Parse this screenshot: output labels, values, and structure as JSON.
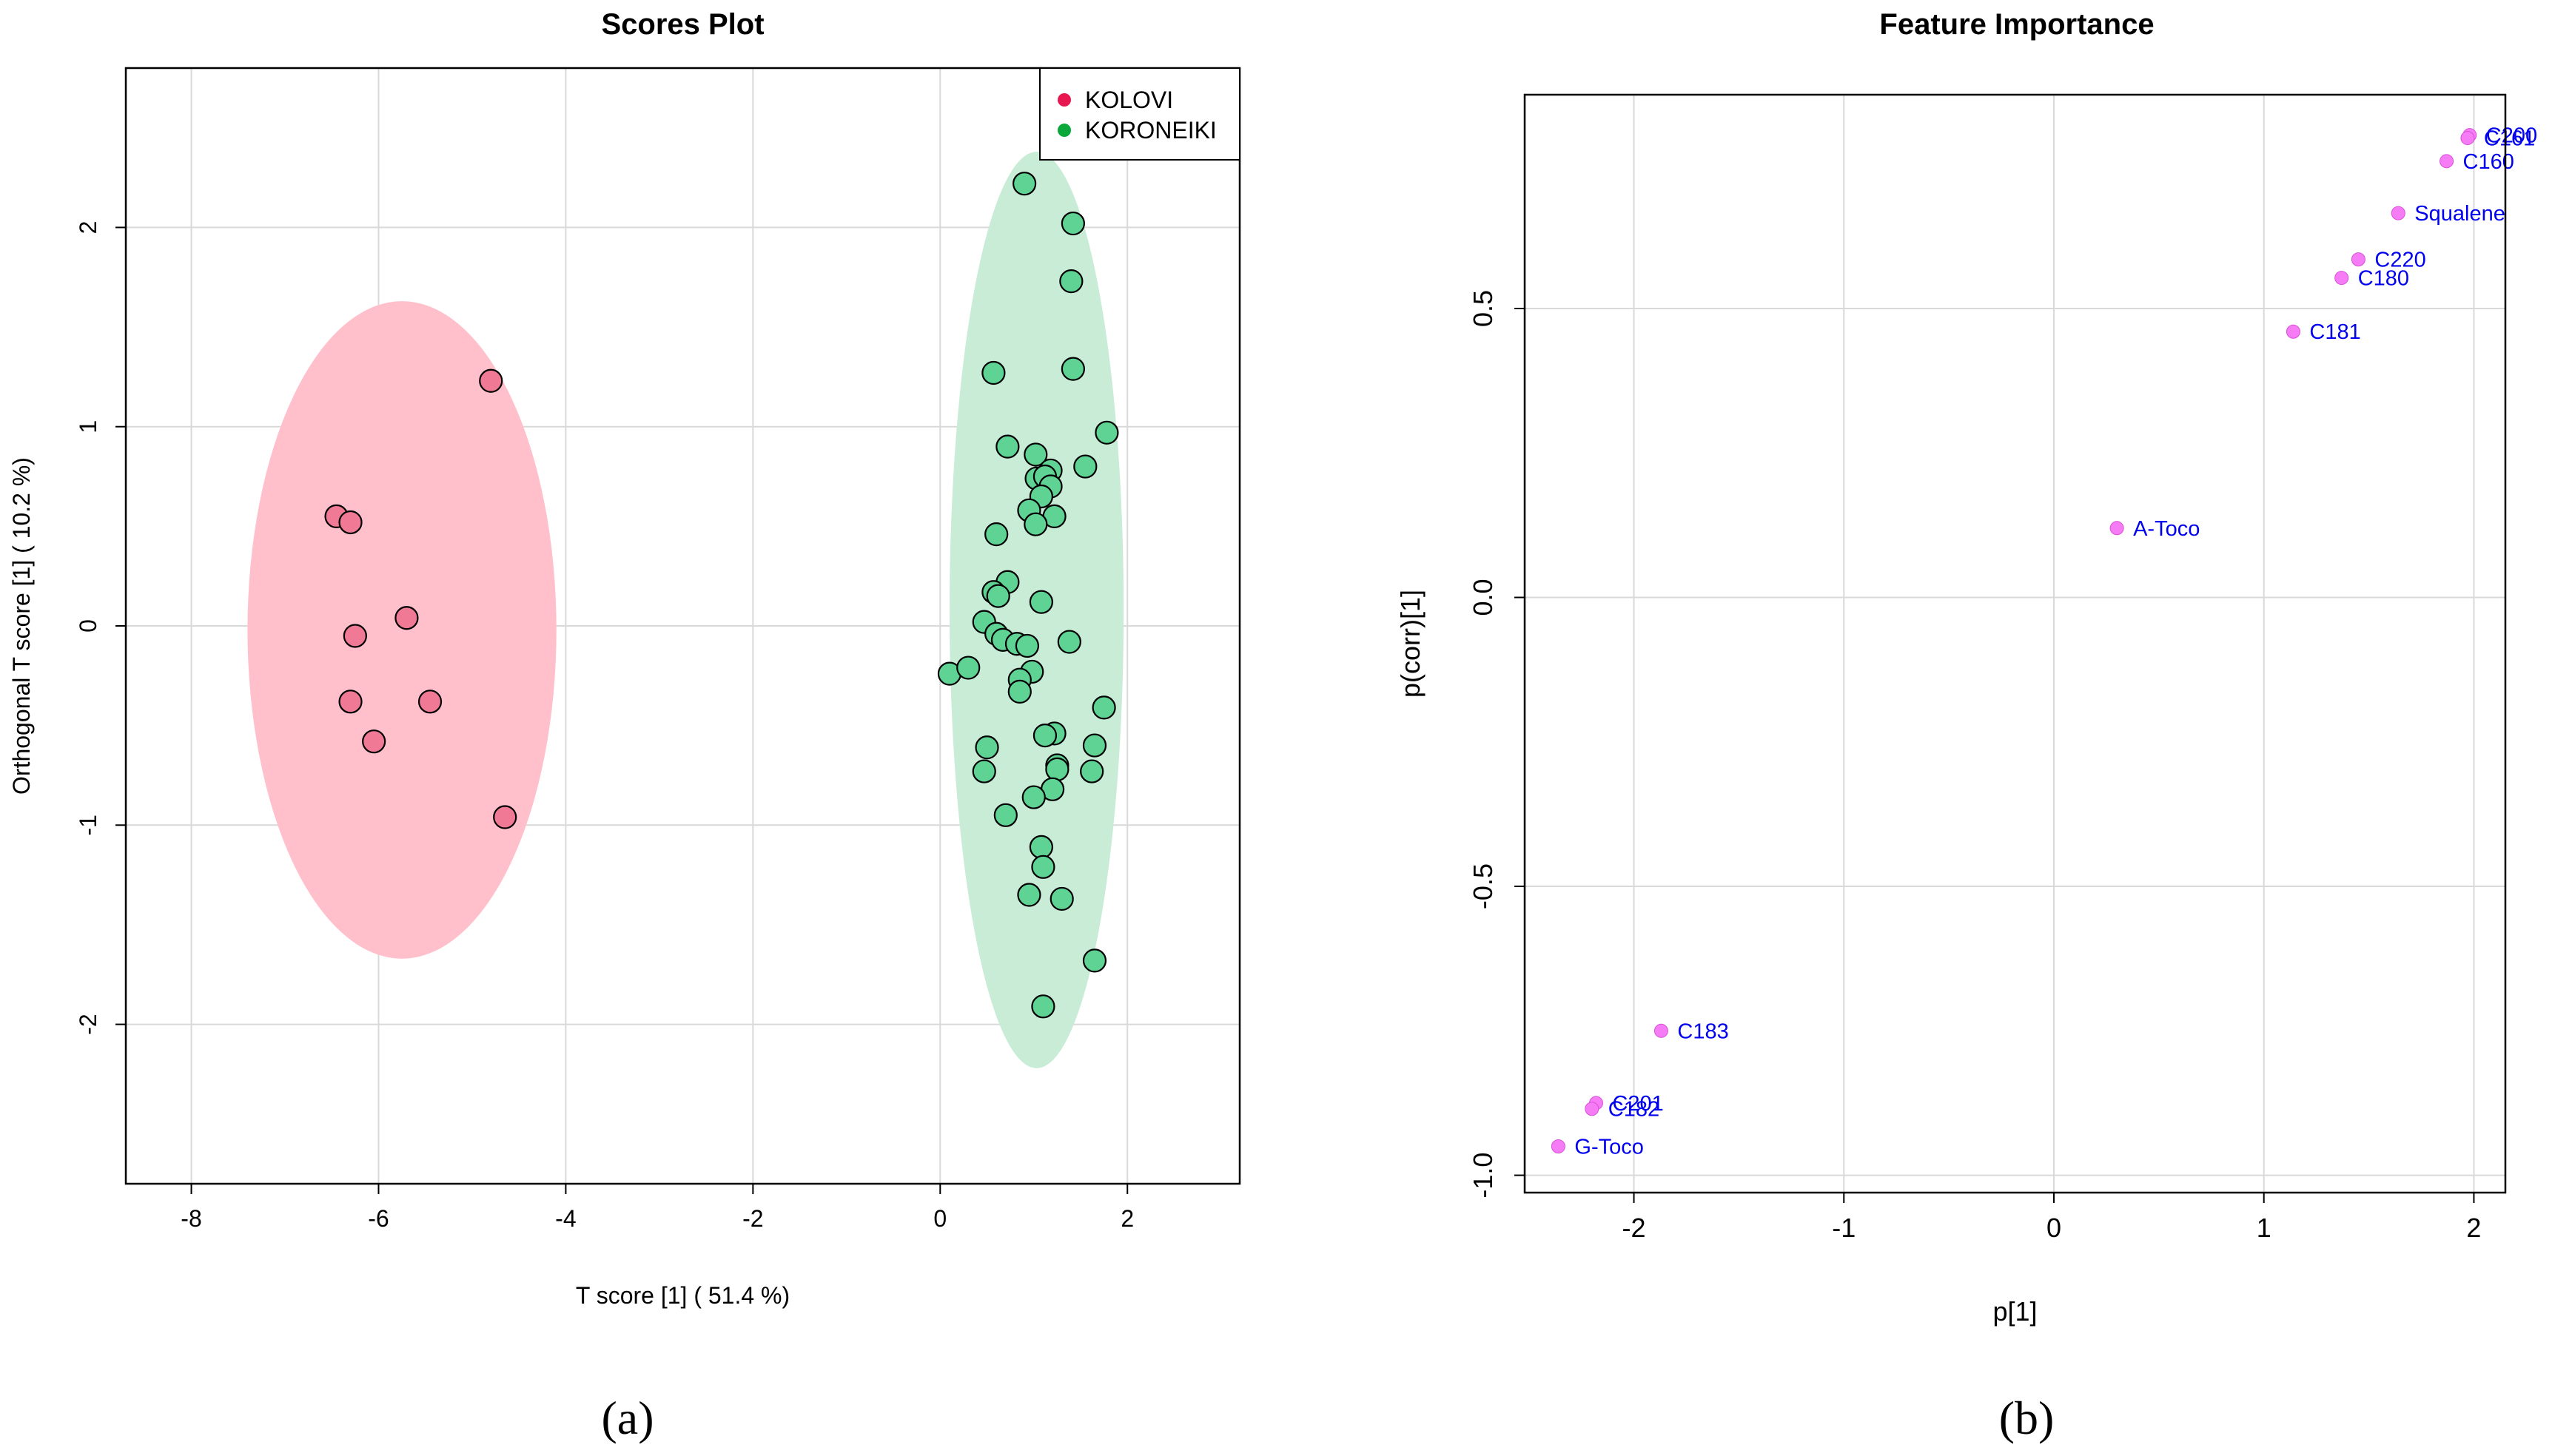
{
  "chart_data": [
    {
      "type": "scatter",
      "panel_label": "(a)",
      "title": "Scores Plot",
      "xlabel": "T score [1] ( 51.4 %)",
      "ylabel": "Orthogonal T score [1] ( 10.2 %)",
      "xlim": [
        -8.7,
        3.2
      ],
      "ylim": [
        -2.8,
        2.8
      ],
      "xticks": [
        -8,
        -6,
        -4,
        -2,
        0,
        2
      ],
      "yticks": [
        -2,
        -1,
        0,
        1,
        2
      ],
      "grid": true,
      "legend": {
        "position": "top-right",
        "entries": [
          "KOLOVI",
          "KORONEIKI"
        ]
      },
      "series": [
        {
          "name": "KOLOVI",
          "color": "#e8174f",
          "marker_fill": "#f07a95",
          "ellipse": {
            "cx": -5.75,
            "cy": -0.02,
            "rx": 1.65,
            "ry": 1.65,
            "fill": "#ffc0cb"
          },
          "points": [
            [
              -4.8,
              1.23
            ],
            [
              -6.45,
              0.55
            ],
            [
              -6.3,
              0.52
            ],
            [
              -5.7,
              0.04
            ],
            [
              -6.25,
              -0.05
            ],
            [
              -6.3,
              -0.38
            ],
            [
              -5.45,
              -0.38
            ],
            [
              -6.05,
              -0.58
            ],
            [
              -4.65,
              -0.96
            ]
          ]
        },
        {
          "name": "KORONEIKI",
          "color": "#0aa83c",
          "marker_fill": "#5fd394",
          "ellipse": {
            "cx": 1.03,
            "cy": 0.08,
            "rx": 0.93,
            "ry": 2.3,
            "fill": "#c8ecd6"
          },
          "points": [
            [
              0.9,
              2.22
            ],
            [
              1.42,
              2.02
            ],
            [
              1.4,
              1.73
            ],
            [
              0.57,
              1.27
            ],
            [
              1.42,
              1.29
            ],
            [
              1.78,
              0.97
            ],
            [
              0.72,
              0.9
            ],
            [
              1.02,
              0.86
            ],
            [
              1.18,
              0.78
            ],
            [
              1.55,
              0.8
            ],
            [
              1.03,
              0.74
            ],
            [
              1.12,
              0.75
            ],
            [
              1.18,
              0.7
            ],
            [
              1.08,
              0.65
            ],
            [
              0.95,
              0.58
            ],
            [
              1.22,
              0.55
            ],
            [
              1.02,
              0.51
            ],
            [
              0.6,
              0.46
            ],
            [
              0.72,
              0.22
            ],
            [
              0.57,
              0.17
            ],
            [
              0.62,
              0.15
            ],
            [
              1.08,
              0.12
            ],
            [
              0.47,
              0.02
            ],
            [
              0.6,
              -0.04
            ],
            [
              0.67,
              -0.07
            ],
            [
              0.82,
              -0.09
            ],
            [
              0.93,
              -0.1
            ],
            [
              1.38,
              -0.08
            ],
            [
              0.1,
              -0.24
            ],
            [
              0.3,
              -0.21
            ],
            [
              0.98,
              -0.23
            ],
            [
              0.85,
              -0.27
            ],
            [
              0.85,
              -0.33
            ],
            [
              1.75,
              -0.41
            ],
            [
              1.22,
              -0.54
            ],
            [
              1.12,
              -0.55
            ],
            [
              0.5,
              -0.61
            ],
            [
              1.65,
              -0.6
            ],
            [
              1.25,
              -0.7
            ],
            [
              1.25,
              -0.72
            ],
            [
              0.47,
              -0.73
            ],
            [
              1.62,
              -0.73
            ],
            [
              1.2,
              -0.82
            ],
            [
              1.0,
              -0.86
            ],
            [
              0.7,
              -0.95
            ],
            [
              1.08,
              -1.11
            ],
            [
              1.1,
              -1.21
            ],
            [
              0.95,
              -1.35
            ],
            [
              1.3,
              -1.37
            ],
            [
              1.65,
              -1.68
            ],
            [
              1.1,
              -1.91
            ]
          ]
        }
      ]
    },
    {
      "type": "scatter",
      "panel_label": "(b)",
      "title": "Feature Importance",
      "xlabel": "p[1]",
      "ylabel": "p(corr)[1]",
      "xlim": [
        -2.52,
        2.15
      ],
      "ylim": [
        -1.03,
        0.87
      ],
      "xticks": [
        -2,
        -1,
        0,
        1,
        2
      ],
      "yticks": [
        -1.0,
        -0.5,
        0.0,
        0.5
      ],
      "grid": true,
      "marker_color": "#f57cf5",
      "label_color": "#0000ee",
      "points": [
        {
          "label": "C200",
          "x": 1.98,
          "y": 0.8
        },
        {
          "label": "C161",
          "x": 1.97,
          "y": 0.795
        },
        {
          "label": "C160",
          "x": 1.87,
          "y": 0.755
        },
        {
          "label": "Squalene",
          "x": 1.64,
          "y": 0.665
        },
        {
          "label": "C220",
          "x": 1.45,
          "y": 0.585
        },
        {
          "label": "C180",
          "x": 1.37,
          "y": 0.553
        },
        {
          "label": "C181",
          "x": 1.14,
          "y": 0.46
        },
        {
          "label": "A-Toco",
          "x": 0.3,
          "y": 0.12
        },
        {
          "label": "C183",
          "x": -1.87,
          "y": -0.75
        },
        {
          "label": "C201",
          "x": -2.18,
          "y": -0.875
        },
        {
          "label": "C182",
          "x": -2.2,
          "y": -0.885
        },
        {
          "label": "G-Toco",
          "x": -2.36,
          "y": -0.95
        }
      ]
    }
  ]
}
